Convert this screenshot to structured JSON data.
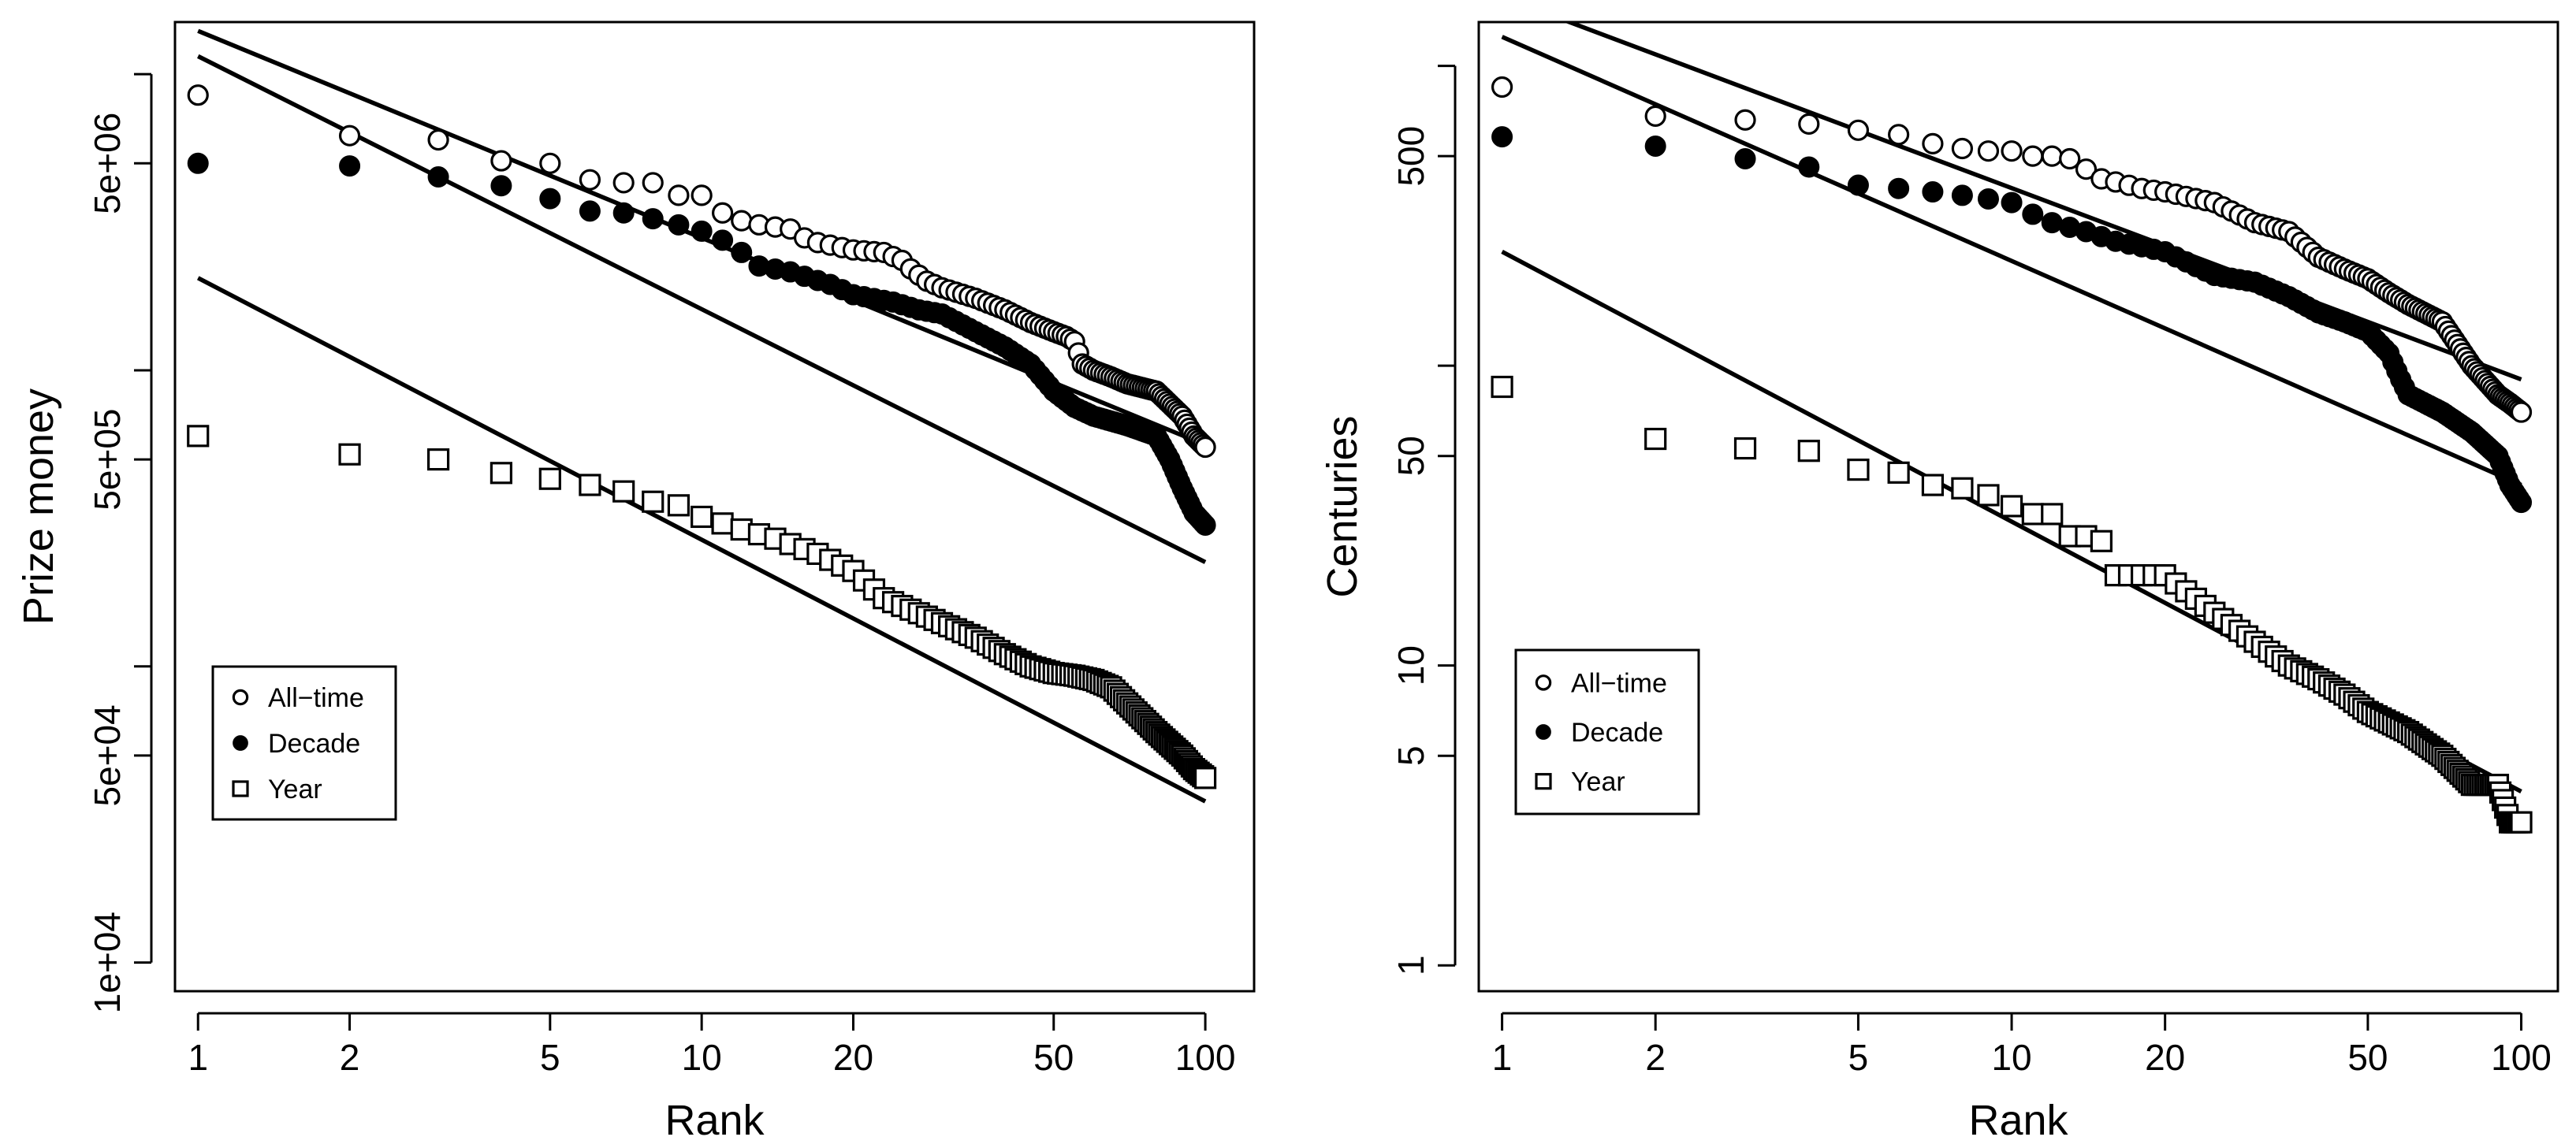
{
  "chart_data": [
    {
      "type": "scatter",
      "scale": "log-log",
      "xlabel": "Rank",
      "ylabel": "Prize money",
      "xlim": [
        0.9,
        125
      ],
      "ylim": [
        8000,
        15000000
      ],
      "x_ticks": [
        {
          "value": 1,
          "label": "1"
        },
        {
          "value": 2,
          "label": "2"
        },
        {
          "value": 5,
          "label": "5"
        },
        {
          "value": 10,
          "label": "10"
        },
        {
          "value": 20,
          "label": "20"
        },
        {
          "value": 50,
          "label": "50"
        },
        {
          "value": 100,
          "label": "100"
        }
      ],
      "y_ticks": [
        {
          "value": 10000,
          "label": "1e+04"
        },
        {
          "value": 50000,
          "label": "5e+04"
        },
        {
          "value": 500000,
          "label": "5e+05"
        },
        {
          "value": 5000000,
          "label": "5e+06"
        }
      ],
      "y_minor_ticks": [
        100000,
        1000000,
        10000000
      ],
      "legend": {
        "position": "lower-left",
        "entries": [
          {
            "label": "All−time",
            "marker": "open-circle"
          },
          {
            "label": "Decade",
            "marker": "filled-circle"
          },
          {
            "label": "Year",
            "marker": "open-square"
          }
        ]
      },
      "series": [
        {
          "name": "All−time",
          "marker": "open-circle",
          "n": 100,
          "anchors": [
            [
              1,
              8500000
            ],
            [
              2,
              6200000
            ],
            [
              3,
              6000000
            ],
            [
              4,
              5100000
            ],
            [
              5,
              5000000
            ],
            [
              6,
              4400000
            ],
            [
              7,
              4300000
            ],
            [
              8,
              4300000
            ],
            [
              9,
              3900000
            ],
            [
              10,
              3900000
            ],
            [
              11,
              3400000
            ],
            [
              12,
              3200000
            ],
            [
              13,
              3100000
            ],
            [
              15,
              3000000
            ],
            [
              16,
              2800000
            ],
            [
              17,
              2700000
            ],
            [
              20,
              2550000
            ],
            [
              23,
              2500000
            ],
            [
              25,
              2350000
            ],
            [
              26,
              2200000
            ],
            [
              28,
              2000000
            ],
            [
              30,
              1900000
            ],
            [
              35,
              1750000
            ],
            [
              40,
              1600000
            ],
            [
              45,
              1450000
            ],
            [
              50,
              1350000
            ],
            [
              53,
              1300000
            ],
            [
              55,
              1250000
            ],
            [
              57,
              1050000
            ],
            [
              60,
              1000000
            ],
            [
              65,
              950000
            ],
            [
              70,
              900000
            ],
            [
              80,
              850000
            ],
            [
              90,
              700000
            ],
            [
              95,
              600000
            ],
            [
              100,
              550000
            ]
          ]
        },
        {
          "name": "Decade",
          "marker": "filled-circle",
          "n": 100,
          "anchors": [
            [
              1,
              5000000
            ],
            [
              2,
              4900000
            ],
            [
              3,
              4500000
            ],
            [
              4,
              4200000
            ],
            [
              5,
              3800000
            ],
            [
              6,
              3450000
            ],
            [
              7,
              3400000
            ],
            [
              8,
              3250000
            ],
            [
              9,
              3100000
            ],
            [
              10,
              2950000
            ],
            [
              11,
              2750000
            ],
            [
              12,
              2500000
            ],
            [
              13,
              2250000
            ],
            [
              15,
              2150000
            ],
            [
              18,
              1950000
            ],
            [
              20,
              1800000
            ],
            [
              24,
              1700000
            ],
            [
              27,
              1600000
            ],
            [
              30,
              1550000
            ],
            [
              35,
              1350000
            ],
            [
              40,
              1200000
            ],
            [
              45,
              1050000
            ],
            [
              50,
              850000
            ],
            [
              55,
              750000
            ],
            [
              60,
              700000
            ],
            [
              70,
              650000
            ],
            [
              80,
              600000
            ],
            [
              85,
              500000
            ],
            [
              90,
              400000
            ],
            [
              95,
              330000
            ],
            [
              100,
              300000
            ]
          ]
        },
        {
          "name": "Year",
          "marker": "open-square",
          "n": 100,
          "anchors": [
            [
              1,
              600000
            ],
            [
              2,
              520000
            ],
            [
              3,
              500000
            ],
            [
              4,
              450000
            ],
            [
              5,
              430000
            ],
            [
              6,
              410000
            ],
            [
              7,
              390000
            ],
            [
              8,
              360000
            ],
            [
              9,
              350000
            ],
            [
              10,
              320000
            ],
            [
              12,
              290000
            ],
            [
              14,
              270000
            ],
            [
              17,
              240000
            ],
            [
              20,
              210000
            ],
            [
              23,
              170000
            ],
            [
              25,
              160000
            ],
            [
              30,
              140000
            ],
            [
              35,
              125000
            ],
            [
              40,
              110000
            ],
            [
              45,
              100000
            ],
            [
              50,
              95000
            ],
            [
              55,
              93000
            ],
            [
              60,
              90000
            ],
            [
              65,
              85000
            ],
            [
              70,
              75000
            ],
            [
              80,
              60000
            ],
            [
              90,
              50000
            ],
            [
              95,
              45000
            ],
            [
              100,
              42000
            ]
          ]
        }
      ],
      "fit_lines": [
        {
          "series": "All−time",
          "from": [
            1,
            14000000
          ],
          "to": [
            100,
            560000
          ]
        },
        {
          "series": "Decade",
          "from": [
            1,
            11500000
          ],
          "to": [
            100,
            225000
          ]
        },
        {
          "series": "Year",
          "from": [
            1,
            2050000
          ],
          "to": [
            100,
            35000
          ]
        }
      ]
    },
    {
      "type": "scatter",
      "scale": "log-log",
      "xlabel": "Rank",
      "ylabel": "Centuries",
      "xlim": [
        0.9,
        118
      ],
      "ylim": [
        0.82,
        1400
      ],
      "x_ticks": [
        {
          "value": 1,
          "label": "1"
        },
        {
          "value": 2,
          "label": "2"
        },
        {
          "value": 5,
          "label": "5"
        },
        {
          "value": 10,
          "label": "10"
        },
        {
          "value": 20,
          "label": "20"
        },
        {
          "value": 50,
          "label": "50"
        },
        {
          "value": 100,
          "label": "100"
        }
      ],
      "y_ticks": [
        {
          "value": 1,
          "label": "1"
        },
        {
          "value": 5,
          "label": "5"
        },
        {
          "value": 10,
          "label": "10"
        },
        {
          "value": 50,
          "label": "50"
        },
        {
          "value": 500,
          "label": "500"
        }
      ],
      "y_minor_ticks": [
        100,
        1000
      ],
      "legend": {
        "position": "lower-left",
        "entries": [
          {
            "label": "All−time",
            "marker": "open-circle"
          },
          {
            "label": "Decade",
            "marker": "filled-circle"
          },
          {
            "label": "Year",
            "marker": "open-square"
          }
        ]
      },
      "series": [
        {
          "name": "All−time",
          "marker": "open-circle",
          "n": 100,
          "anchors": [
            [
              1,
              850
            ],
            [
              2,
              680
            ],
            [
              3,
              660
            ],
            [
              4,
              640
            ],
            [
              5,
              610
            ],
            [
              6,
              590
            ],
            [
              7,
              550
            ],
            [
              8,
              530
            ],
            [
              9,
              520
            ],
            [
              10,
              520
            ],
            [
              11,
              500
            ],
            [
              12,
              500
            ],
            [
              13,
              490
            ],
            [
              15,
              420
            ],
            [
              16,
              410
            ],
            [
              18,
              390
            ],
            [
              20,
              380
            ],
            [
              25,
              350
            ],
            [
              30,
              300
            ],
            [
              35,
              280
            ],
            [
              40,
              230
            ],
            [
              45,
              210
            ],
            [
              50,
              195
            ],
            [
              55,
              175
            ],
            [
              60,
              160
            ],
            [
              70,
              140
            ],
            [
              80,
              100
            ],
            [
              90,
              80
            ],
            [
              95,
              75
            ],
            [
              100,
              70
            ]
          ]
        },
        {
          "name": "Decade",
          "marker": "filled-circle",
          "n": 100,
          "anchors": [
            [
              1,
              580
            ],
            [
              2,
              540
            ],
            [
              3,
              490
            ],
            [
              4,
              460
            ],
            [
              5,
              400
            ],
            [
              6,
              390
            ],
            [
              7,
              380
            ],
            [
              8,
              370
            ],
            [
              9,
              360
            ],
            [
              10,
              350
            ],
            [
              11,
              320
            ],
            [
              12,
              300
            ],
            [
              14,
              280
            ],
            [
              16,
              260
            ],
            [
              20,
              240
            ],
            [
              25,
              200
            ],
            [
              30,
              190
            ],
            [
              35,
              170
            ],
            [
              40,
              150
            ],
            [
              45,
              140
            ],
            [
              50,
              130
            ],
            [
              55,
              110
            ],
            [
              58,
              90
            ],
            [
              60,
              80
            ],
            [
              70,
              70
            ],
            [
              80,
              60
            ],
            [
              90,
              50
            ],
            [
              95,
              40
            ],
            [
              100,
              35
            ]
          ]
        },
        {
          "name": "Year",
          "marker": "open-square",
          "n": 100,
          "anchors": [
            [
              1,
              85
            ],
            [
              2,
              57
            ],
            [
              3,
              53
            ],
            [
              4,
              52
            ],
            [
              5,
              45
            ],
            [
              6,
              44
            ],
            [
              7,
              40
            ],
            [
              8,
              39
            ],
            [
              9,
              37
            ],
            [
              10,
              34
            ],
            [
              11,
              32
            ],
            [
              12,
              32
            ],
            [
              13,
              27
            ],
            [
              14,
              27
            ],
            [
              15,
              26
            ],
            [
              16,
              20
            ],
            [
              18,
              20
            ],
            [
              20,
              20
            ],
            [
              25,
              15
            ],
            [
              30,
              12
            ],
            [
              35,
              10
            ],
            [
              40,
              9
            ],
            [
              45,
              8
            ],
            [
              50,
              7
            ],
            [
              60,
              6
            ],
            [
              70,
              5
            ],
            [
              80,
              4
            ],
            [
              90,
              4
            ],
            [
              95,
              3
            ],
            [
              100,
              3
            ]
          ]
        }
      ],
      "fit_lines": [
        {
          "series": "All−time",
          "from": [
            1,
            1700
          ],
          "to": [
            100,
            90
          ]
        },
        {
          "series": "Decade",
          "from": [
            1,
            1250
          ],
          "to": [
            100,
            40
          ]
        },
        {
          "series": "Year",
          "from": [
            1,
            240
          ],
          "to": [
            100,
            3.8
          ]
        }
      ]
    }
  ]
}
